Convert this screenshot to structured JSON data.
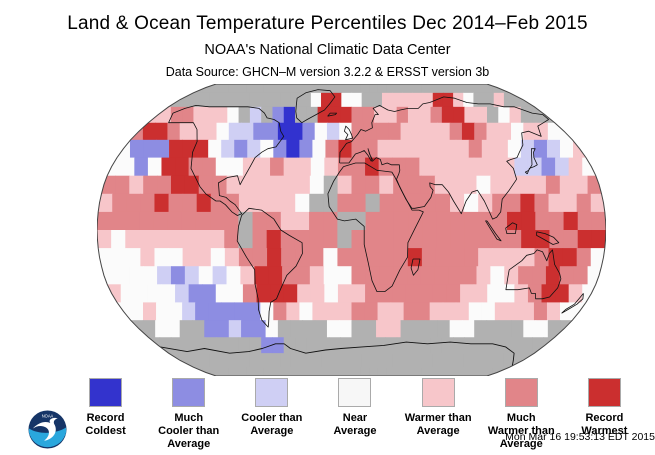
{
  "header": {
    "title": "Land & Ocean Temperature Percentiles Dec 2014–Feb 2015",
    "subtitle": "NOAA's National Climatic Data Center",
    "datasource": "Data Source: GHCN–M version 3.2.2 & ERSST version 3b"
  },
  "legend": {
    "items": [
      {
        "label": "Record\nColdest",
        "color": "#3333cd",
        "key": "B"
      },
      {
        "label": "Much\nCooler than\nAverage",
        "color": "#8d8de2",
        "key": "b"
      },
      {
        "label": "Cooler than\nAverage",
        "color": "#cfcff4",
        "key": "c"
      },
      {
        "label": "Near\nAverage",
        "color": "#f7f7f7",
        "key": "w"
      },
      {
        "label": "Warmer than\nAverage",
        "color": "#f7c6ca",
        "key": "p"
      },
      {
        "label": "Much\nWarmer than\nAverage",
        "color": "#e18589",
        "key": "m"
      },
      {
        "label": "Record\nWarmest",
        "color": "#cb2f2f",
        "key": "R"
      }
    ]
  },
  "footer": {
    "timestamp": "Mon Mar 16 19:53:13 EDT 2015",
    "logo": "noaa-logo"
  },
  "map": {
    "projection": "robinson",
    "cols": 36,
    "rows": 18,
    "palette": {
      "B": "#3232cf",
      "b": "#8d8de2",
      "c": "#cfcff4",
      "w": "#fbfbfb",
      "p": "#f7c6ca",
      "m": "#e18589",
      "R": "#cb2f2f",
      "g": "#b1b1b1"
    },
    "no_data_color": "#b1b1b1",
    "grid_rows": [
      "gggggggggggggggggggggggggggggggggggg",
      "ggggggggggggggwRRwwggpppppRRpwggpggg",
      "ppmmpppwgcgbBggRRRmmppmppmRRppgwpggg",
      "mRRmpppwccbbBBbwcwmmmmppppmRmppwppww",
      "wbbbRRRwcbcwbBbwmRmmpppppppmppwcbcwp",
      "wwbwRRmmwwppmppwpmmRmmmpppppppccbcpw",
      "mmpmmRRmmppppppwgpmmpmmmpppwppppmppm",
      "pmmmRmmRmmppppwggmmgmmmmmpwpmmRmppmp",
      "mmmmmmmmmmgmmppmmggmmmmmmmmmmRRmmRmm",
      "pwpppppppmgmRmmmmgmmmmmmmmmmmmRRmmRR",
      "wwwpwwppwpmmRmmmwmmmmmRmmmmppppmRRmw",
      "wwwwcbcwcwpRRmmpwwmmmmmmmmmpwpmmRmmw",
      "pwwwwcbbwwmRRRppwppmmmmmmmppwwpmRRpw",
      "wwpwwcbbbbbwmpwpppmmppmmpppwwpppmpww",
      "ggwwggbbcbbwggggwwggppggggwwggggwwgg",
      "ggggggggggbbgggggggggggggggggggggggg",
      "gggggggggggggggggggggggggggggggggggg",
      "gggggggggggggggggggggggggggggggggggg"
    ]
  }
}
